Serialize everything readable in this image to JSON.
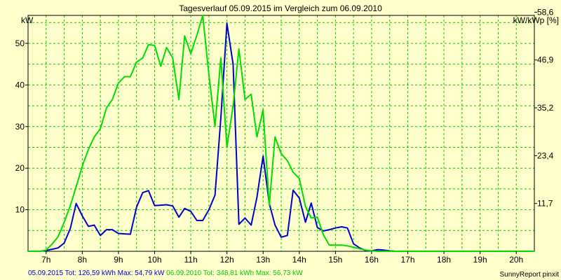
{
  "chart_data": {
    "type": "line",
    "title": "Tagesverlauf 05.09.2015 im Vergleich zum 06.09.2010",
    "ylabel_left": "kW",
    "ylabel_right": "kW/kWp [%]",
    "xlim": [
      6.5,
      20.5
    ],
    "ylim": [
      0,
      56.73
    ],
    "grid": true,
    "x_tick_values": [
      7,
      8,
      9,
      10,
      11,
      12,
      13,
      14,
      15,
      16,
      17,
      18,
      19,
      20
    ],
    "x_ticks": [
      "7h",
      "8h",
      "9h",
      "10h",
      "11h",
      "12h",
      "13h",
      "14h",
      "15h",
      "16h",
      "17h",
      "18h",
      "19h",
      "20h"
    ],
    "y_left_tick_values": [
      10,
      20,
      30,
      40,
      50
    ],
    "y_left_ticks": [
      "10",
      "20",
      "30",
      "40",
      "50"
    ],
    "y_right_tick_values": [
      11.7,
      23.4,
      35.2,
      46.9,
      58.6
    ],
    "y_right_ticks": [
      "11,7",
      "23,4",
      "35,2",
      "46,9",
      "58,6"
    ],
    "series": [
      {
        "color": "#0000cc",
        "x": [
          6.5,
          6.83,
          7.0,
          7.17,
          7.33,
          7.5,
          7.67,
          7.83,
          8.0,
          8.17,
          8.33,
          8.5,
          8.67,
          8.83,
          9.0,
          9.17,
          9.33,
          9.5,
          9.67,
          9.83,
          10.0,
          10.17,
          10.33,
          10.5,
          10.67,
          10.83,
          11.0,
          11.17,
          11.33,
          11.5,
          11.67,
          11.83,
          12.0,
          12.17,
          12.33,
          12.5,
          12.67,
          12.83,
          13.0,
          13.17,
          13.33,
          13.5,
          13.67,
          13.83,
          14.0,
          14.17,
          14.33,
          14.5,
          14.67,
          14.83,
          15.0,
          15.17,
          15.33,
          15.5,
          15.67,
          15.83,
          16.0,
          16.17,
          16.33,
          16.5,
          16.67,
          16.83,
          17.0,
          17.17,
          17.33,
          17.5,
          17.67,
          17.83,
          18.0,
          18.17,
          18.33,
          18.5,
          18.67,
          18.83,
          19.0,
          19.17,
          19.33,
          19.5,
          19.67,
          19.83,
          20.0,
          20.17,
          20.33,
          20.5
        ],
        "y": [
          0,
          0,
          0.2,
          0.5,
          0.8,
          2.0,
          5.5,
          11.5,
          8.5,
          6.0,
          6.3,
          3.8,
          5.2,
          5.2,
          4.3,
          4.2,
          4.1,
          10.6,
          14.1,
          14.6,
          11.0,
          11.1,
          11.2,
          10.9,
          8.2,
          10.3,
          9.6,
          7.4,
          7.4,
          10.0,
          13.5,
          32.0,
          54.8,
          45.0,
          6.5,
          8.0,
          6.3,
          13.0,
          22.9,
          11.5,
          6.3,
          3.4,
          3.8,
          14.7,
          12.8,
          7.0,
          11.6,
          5.7,
          4.9,
          5.2,
          5.6,
          5.9,
          5.6,
          1.8,
          0.8,
          0.2,
          0.1,
          0.4,
          0.3,
          0.1,
          0,
          0,
          0,
          0,
          0,
          0,
          0,
          0,
          0,
          0,
          0,
          0,
          0,
          0,
          0,
          0,
          0,
          0,
          0,
          0,
          0,
          0,
          0,
          0
        ]
      },
      {
        "color": "#00dd00",
        "x": [
          6.5,
          6.83,
          7.0,
          7.17,
          7.33,
          7.5,
          7.67,
          7.83,
          8.0,
          8.17,
          8.33,
          8.5,
          8.67,
          8.83,
          9.0,
          9.17,
          9.33,
          9.5,
          9.67,
          9.83,
          10.0,
          10.17,
          10.33,
          10.5,
          10.67,
          10.83,
          11.0,
          11.17,
          11.33,
          11.5,
          11.67,
          11.83,
          12.0,
          12.17,
          12.33,
          12.5,
          12.67,
          12.83,
          13.0,
          13.17,
          13.33,
          13.5,
          13.67,
          13.83,
          14.0,
          14.17,
          14.33,
          14.5,
          14.67,
          14.83,
          15.0,
          15.17,
          15.33,
          15.5,
          15.67,
          15.83,
          16.0,
          16.17,
          16.33,
          16.5,
          16.67,
          16.83,
          17.0,
          17.17,
          17.33,
          17.5,
          17.67,
          17.83,
          18.0,
          18.17,
          18.33,
          18.5,
          18.67,
          18.83,
          19.0,
          19.17,
          19.33,
          19.5,
          19.67,
          19.83,
          20.0,
          20.17,
          20.33,
          20.5
        ],
        "y": [
          0,
          0,
          0.3,
          1.8,
          3.5,
          7.0,
          11.0,
          15.5,
          20.5,
          24.5,
          27.5,
          29.5,
          34.5,
          36.5,
          40.5,
          42.0,
          42.0,
          45.5,
          46.5,
          49.7,
          49.5,
          44.5,
          49.0,
          46.5,
          36.5,
          51.8,
          47.5,
          52.0,
          56.7,
          42.5,
          30.0,
          46.5,
          25.0,
          35.0,
          48.7,
          36.5,
          37.8,
          27.5,
          34.0,
          11.0,
          27.5,
          23.5,
          21.8,
          19.0,
          17.5,
          10.8,
          8.0,
          8.2,
          3.9,
          1.5,
          1.5,
          1.5,
          1.3,
          1.0,
          0.6,
          0.3,
          0.1,
          0,
          0,
          0,
          0,
          0,
          0,
          0,
          0,
          0,
          0,
          0,
          0,
          0,
          0,
          0,
          0,
          0,
          0,
          0,
          0,
          0,
          0,
          0,
          0,
          0,
          0,
          0
        ]
      }
    ]
  },
  "footer": {
    "series1_summary": "05.09.2015 Tot: 126,59 kWh Max: 54,79 kW",
    "series2_summary": " 06.09.2010 Tot: 348,81 kWh Max: 56,73 kW",
    "credit": "SunnyReport pinxit"
  },
  "colors": {
    "background": "#ffffcc",
    "grid": "#00cc00",
    "axis": "#000000"
  }
}
